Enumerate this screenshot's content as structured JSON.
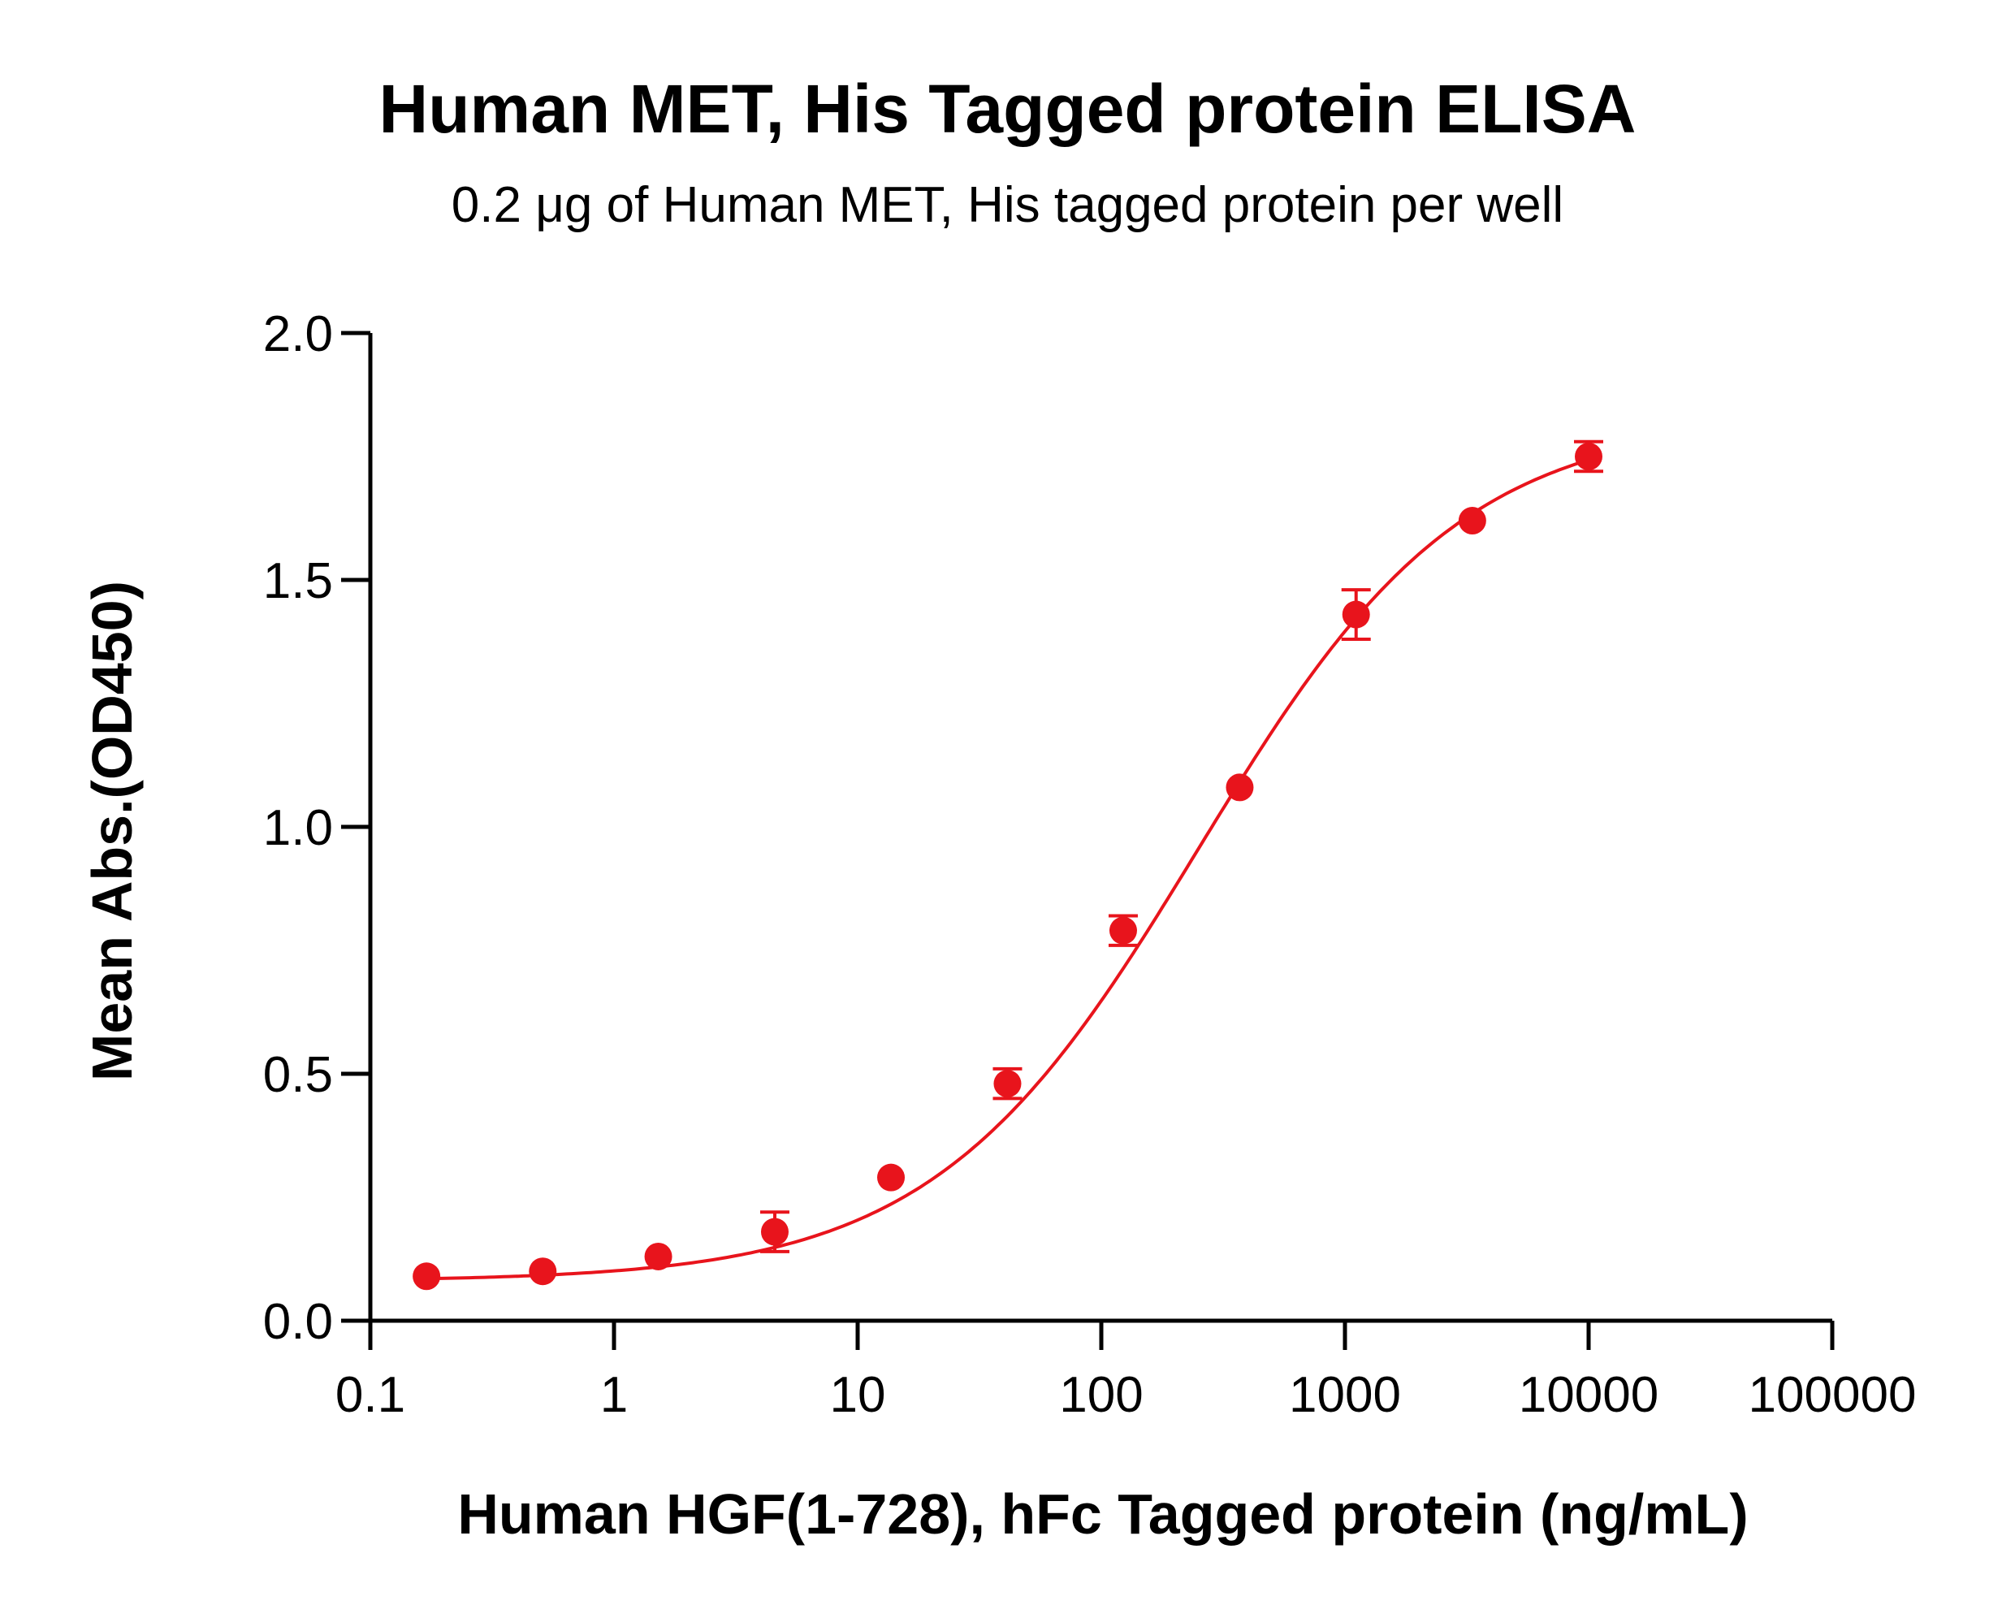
{
  "chart_data": {
    "type": "scatter",
    "title": "Human MET, His Tagged protein ELISA",
    "subtitle": "0.2 μg of Human MET, His tagged protein per well",
    "xlabel": "Human HGF(1-728), hFc Tagged protein (ng/mL)",
    "ylabel": "Mean Abs.(OD450)",
    "x_scale": "log",
    "xlim": [
      0.1,
      100000
    ],
    "ylim": [
      0.0,
      2.0
    ],
    "x_ticks": [
      "0.1",
      "1",
      "10",
      "100",
      "1000",
      "10000",
      "100000"
    ],
    "y_ticks": [
      "0.0",
      "0.5",
      "1.0",
      "1.5",
      "2.0"
    ],
    "grid": false,
    "color": "#e8141c",
    "series": [
      {
        "x": [
          0.17,
          0.51,
          1.52,
          4.57,
          13.7,
          41.2,
          123,
          370,
          1111,
          3333,
          10000
        ],
        "y": [
          0.09,
          0.1,
          0.13,
          0.18,
          0.29,
          0.48,
          0.79,
          1.08,
          1.43,
          1.62,
          1.75
        ],
        "error": [
          0.0,
          0.0,
          0.0,
          0.04,
          0.0,
          0.03,
          0.03,
          0.0,
          0.05,
          0.0,
          0.03
        ]
      }
    ],
    "fit_curve": {
      "model": "4PL",
      "bottom": 0.08,
      "top": 1.83,
      "ec50": 250,
      "hill": 0.8
    }
  }
}
